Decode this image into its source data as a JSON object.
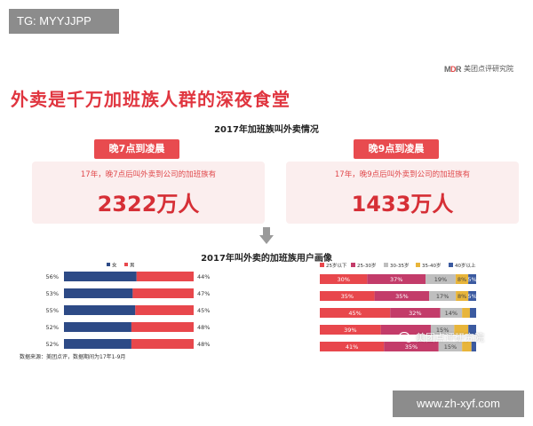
{
  "tag": "TG: MYYJJPP",
  "brand": {
    "logo": "MDR",
    "name": "美团点评研究院"
  },
  "title": "外卖是千万加班族人群的深夜食堂",
  "section1_title": "2017年加班族叫外卖情况",
  "cards": [
    {
      "head": "晚7点到凌晨",
      "desc": "17年，晚7点后叫外卖到公司的加班族有",
      "value": "2322万人"
    },
    {
      "head": "晚9点到凌晨",
      "desc": "17年，晚9点后叫外卖到公司的加班族有",
      "value": "1433万人"
    }
  ],
  "section2_title": "2017年叫外卖的加班族用户画像",
  "source_note": "数据来源：美团点评，数据期间为17年1-9月",
  "watermark": {
    "site": "www.zh-xyf.com",
    "wechat": "美团点评研究院"
  },
  "chart_data": [
    {
      "type": "bar",
      "stacked": true,
      "orientation": "horizontal",
      "categories": [
        "",
        "",
        "",
        "",
        ""
      ],
      "series": [
        {
          "name": "女",
          "color": "#2d4a86",
          "values": [
            56,
            53,
            55,
            52,
            52
          ]
        },
        {
          "name": "男",
          "color": "#e8474c",
          "values": [
            44,
            47,
            45,
            48,
            48
          ]
        }
      ],
      "value_labels": [
        [
          "56%",
          "53%",
          "55%",
          "52%",
          "52%"
        ],
        [
          "44%",
          "47%",
          "45%",
          "48%",
          "48%"
        ]
      ],
      "legend": "top-center",
      "xlim": [
        0,
        100
      ]
    },
    {
      "type": "bar",
      "stacked": true,
      "orientation": "horizontal",
      "categories": [
        "",
        "",
        "",
        "",
        ""
      ],
      "series": [
        {
          "name": "25岁以下",
          "color": "#e8474c",
          "values": [
            30,
            35,
            45,
            39,
            41
          ]
        },
        {
          "name": "25-30岁",
          "color": "#c33c6a",
          "values": [
            37,
            35,
            32,
            32,
            35
          ]
        },
        {
          "name": "30-35岁",
          "color": "#bfbfbf",
          "values": [
            19,
            17,
            14,
            15,
            15
          ]
        },
        {
          "name": "35-40岁",
          "color": "#e8b53a",
          "values": [
            8,
            8,
            5,
            9,
            6
          ]
        },
        {
          "name": "40岁以上",
          "color": "#3b5aa0",
          "values": [
            5,
            5,
            4,
            5,
            3
          ]
        }
      ],
      "value_labels": [
        [
          "30%",
          "35%",
          "45%",
          "39%",
          "41%"
        ],
        [
          "37%",
          "35%",
          "32%",
          "",
          "35%"
        ],
        [
          "19%",
          "17%",
          "14%",
          "15%",
          "15%"
        ],
        [
          "8%",
          "8%",
          "",
          "",
          ""
        ],
        [
          "5%",
          "5%",
          "",
          "",
          ""
        ]
      ],
      "legend": "top-right",
      "xlim": [
        0,
        100
      ]
    }
  ]
}
